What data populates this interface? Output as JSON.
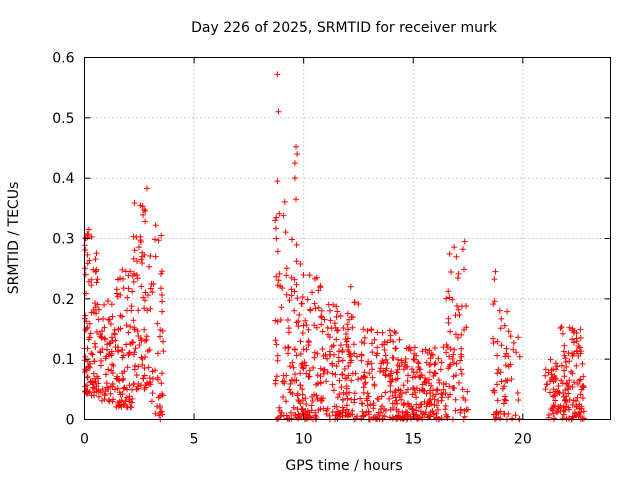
{
  "chart_data": {
    "type": "scatter",
    "title": "Day 226 of 2025, SRMTID for receiver murk",
    "xlabel": "GPS time / hours",
    "ylabel": "SRMTID / TECUs",
    "xlim": [
      0,
      24
    ],
    "ylim": [
      0,
      0.6
    ],
    "x_ticks": [
      0,
      5,
      10,
      15,
      20
    ],
    "y_ticks": [
      0,
      0.1,
      0.2,
      0.3,
      0.4,
      0.5,
      0.6
    ],
    "x_tick_labels": [
      "0",
      "5",
      "10",
      "15",
      "20"
    ],
    "y_tick_labels": [
      "0",
      "0.1",
      "0.2",
      "0.3",
      "0.4",
      "0.5",
      "0.6"
    ],
    "grid": true,
    "marker": "plus",
    "color": "#ff0000",
    "clusters": [
      {
        "x_range": [
          0.0,
          0.6
        ],
        "y_range": [
          0.04,
          0.31
        ],
        "count": 90
      },
      {
        "x_range": [
          0.6,
          1.4
        ],
        "y_range": [
          0.03,
          0.2
        ],
        "count": 70
      },
      {
        "x_range": [
          1.4,
          2.2
        ],
        "y_range": [
          0.02,
          0.25
        ],
        "count": 80
      },
      {
        "x_range": [
          2.2,
          3.0
        ],
        "y_range": [
          0.05,
          0.36
        ],
        "count": 80
      },
      {
        "x_range": [
          3.0,
          3.6
        ],
        "y_range": [
          0.0,
          0.3
        ],
        "count": 45
      },
      {
        "x_range": [
          8.7,
          9.2
        ],
        "y_range": [
          0.0,
          0.4
        ],
        "count": 40
      },
      {
        "x_range": [
          9.2,
          9.9
        ],
        "y_range": [
          0.0,
          0.3
        ],
        "count": 70
      },
      {
        "x_range": [
          9.9,
          11.0
        ],
        "y_range": [
          0.0,
          0.24
        ],
        "count": 100
      },
      {
        "x_range": [
          11.0,
          12.5
        ],
        "y_range": [
          0.0,
          0.2
        ],
        "count": 130
      },
      {
        "x_range": [
          12.5,
          14.5
        ],
        "y_range": [
          0.0,
          0.15
        ],
        "count": 160
      },
      {
        "x_range": [
          14.5,
          16.5
        ],
        "y_range": [
          0.0,
          0.12
        ],
        "count": 170
      },
      {
        "x_range": [
          16.5,
          17.5
        ],
        "y_range": [
          0.0,
          0.29
        ],
        "count": 70
      },
      {
        "x_range": [
          18.6,
          19.1
        ],
        "y_range": [
          0.0,
          0.24
        ],
        "count": 30
      },
      {
        "x_range": [
          19.1,
          19.9
        ],
        "y_range": [
          0.0,
          0.18
        ],
        "count": 35
      },
      {
        "x_range": [
          21.0,
          21.7
        ],
        "y_range": [
          0.0,
          0.1
        ],
        "count": 45
      },
      {
        "x_range": [
          21.7,
          22.8
        ],
        "y_range": [
          0.0,
          0.16
        ],
        "count": 110
      }
    ],
    "highlights": [
      {
        "x": 8.8,
        "y": 0.572
      },
      {
        "x": 8.85,
        "y": 0.51
      },
      {
        "x": 8.8,
        "y": 0.395
      },
      {
        "x": 9.65,
        "y": 0.452
      },
      {
        "x": 9.7,
        "y": 0.44
      },
      {
        "x": 9.6,
        "y": 0.425
      },
      {
        "x": 9.6,
        "y": 0.4
      },
      {
        "x": 9.65,
        "y": 0.365
      },
      {
        "x": 2.85,
        "y": 0.383
      },
      {
        "x": 2.55,
        "y": 0.355
      },
      {
        "x": 3.25,
        "y": 0.322
      },
      {
        "x": 3.5,
        "y": 0.305
      },
      {
        "x": 0.2,
        "y": 0.315
      },
      {
        "x": 17.35,
        "y": 0.295
      },
      {
        "x": 18.75,
        "y": 0.245
      },
      {
        "x": 8.7,
        "y": 0.33
      },
      {
        "x": 8.75,
        "y": 0.3
      },
      {
        "x": 12.15,
        "y": 0.22
      },
      {
        "x": 10.6,
        "y": 0.235
      }
    ]
  }
}
